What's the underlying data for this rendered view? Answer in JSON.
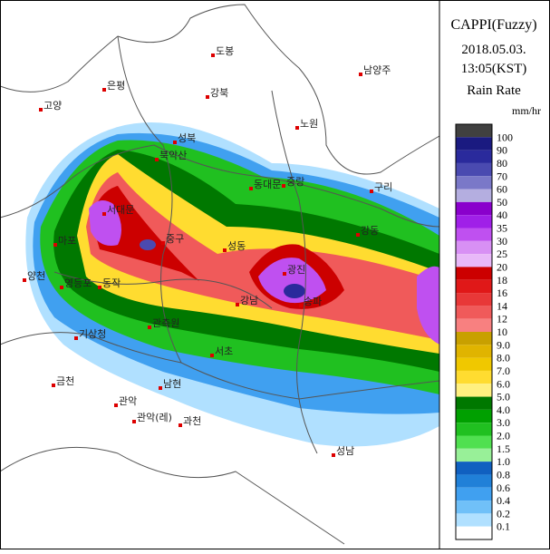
{
  "title": [
    "CAPPI(Fuzzy)",
    "2018.05.03.",
    "13:05(KST)"
  ],
  "legend": {
    "title": "Rain Rate",
    "unit": "mm/hr",
    "top_color": "#404040",
    "items": [
      {
        "label": "100",
        "color": "#1a1a80"
      },
      {
        "label": "90",
        "color": "#2a2a9c"
      },
      {
        "label": "80",
        "color": "#4a4ab0"
      },
      {
        "label": "70",
        "color": "#7a78c8"
      },
      {
        "label": "60",
        "color": "#b4aee0"
      },
      {
        "label": "50",
        "color": "#8a00cc"
      },
      {
        "label": "40",
        "color": "#a020e8"
      },
      {
        "label": "35",
        "color": "#bf50f0"
      },
      {
        "label": "30",
        "color": "#d890f4"
      },
      {
        "label": "25",
        "color": "#e8b8f8"
      },
      {
        "label": "20",
        "color": "#cc0000"
      },
      {
        "label": "18",
        "color": "#e01818"
      },
      {
        "label": "16",
        "color": "#e83838"
      },
      {
        "label": "14",
        "color": "#f05a5a"
      },
      {
        "label": "12",
        "color": "#f88080"
      },
      {
        "label": "10",
        "color": "#c8a000"
      },
      {
        "label": "9.0",
        "color": "#e0b400"
      },
      {
        "label": "8.0",
        "color": "#f0c800"
      },
      {
        "label": "7.0",
        "color": "#ffdc30"
      },
      {
        "label": "6.0",
        "color": "#fff080"
      },
      {
        "label": "5.0",
        "color": "#007800"
      },
      {
        "label": "4.0",
        "color": "#00a000"
      },
      {
        "label": "3.0",
        "color": "#20c020"
      },
      {
        "label": "2.0",
        "color": "#50e050"
      },
      {
        "label": "1.5",
        "color": "#98f098"
      },
      {
        "label": "1.0",
        "color": "#1060c0"
      },
      {
        "label": "0.8",
        "color": "#2080d8"
      },
      {
        "label": "0.6",
        "color": "#40a0f0"
      },
      {
        "label": "0.4",
        "color": "#70c0f8"
      },
      {
        "label": "0.2",
        "color": "#b0e0ff"
      },
      {
        "label": "0.1",
        "color": "#ffffff"
      }
    ]
  },
  "places": [
    "도봉",
    "남양주",
    "고양",
    "은평",
    "강북",
    "노원",
    "성북",
    "북악산",
    "동대문",
    "중랑",
    "구리",
    "서대문",
    "마포",
    "중구",
    "성동",
    "광진",
    "강동",
    "양천",
    "영등포",
    "동작",
    "강남",
    "송파",
    "기상청",
    "관측원",
    "서초",
    "금천",
    "남현",
    "관악",
    "관악(레)",
    "과천",
    "성남"
  ]
}
